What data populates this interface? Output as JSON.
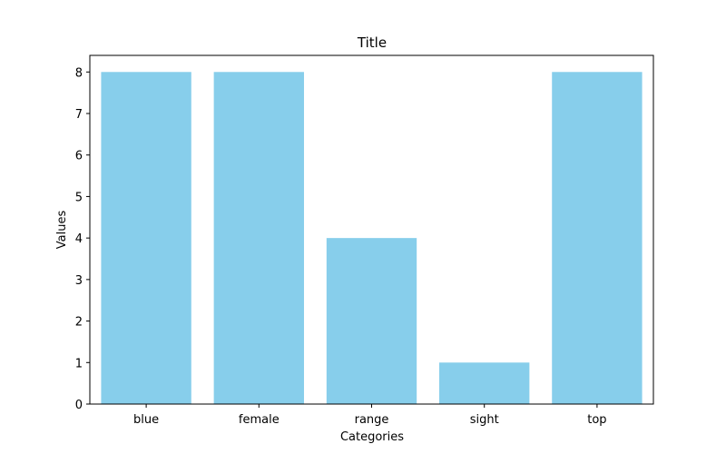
{
  "chart_data": {
    "type": "bar",
    "title": "Title",
    "xlabel": "Categories",
    "ylabel": "Values",
    "categories": [
      "blue",
      "female",
      "range",
      "sight",
      "top"
    ],
    "values": [
      8,
      8,
      4,
      1,
      8
    ],
    "ylim": [
      0,
      8.4
    ],
    "yticks": [
      0,
      1,
      2,
      3,
      4,
      5,
      6,
      7,
      8
    ],
    "bar_color": "#87ceeb",
    "grid": false,
    "legend": "none"
  }
}
